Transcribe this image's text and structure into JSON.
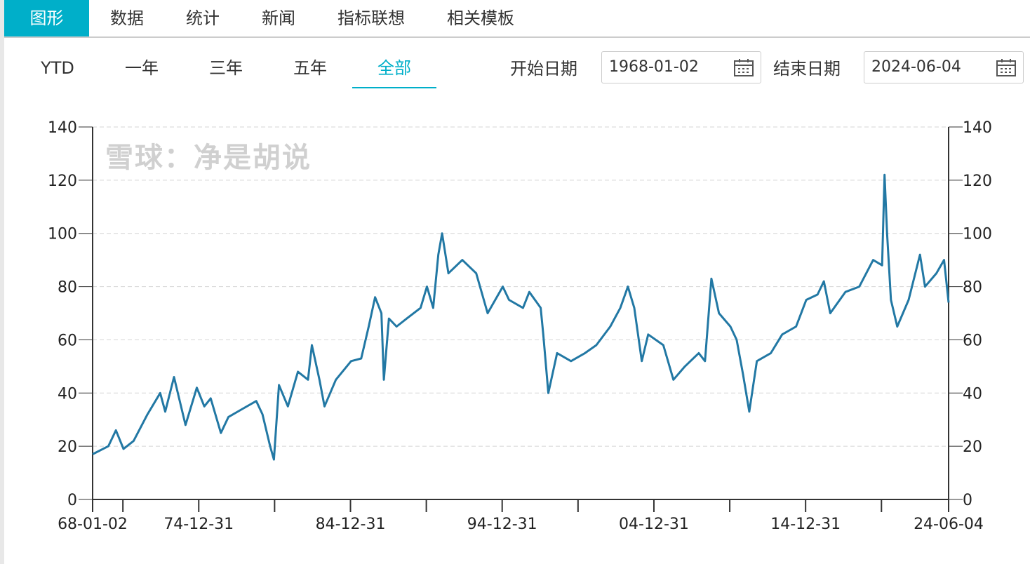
{
  "tabs": [
    {
      "label": "图形",
      "active": true
    },
    {
      "label": "数据"
    },
    {
      "label": "统计"
    },
    {
      "label": "新闻"
    },
    {
      "label": "指标联想"
    },
    {
      "label": "相关模板"
    }
  ],
  "ranges": [
    {
      "label": "YTD"
    },
    {
      "label": "一年"
    },
    {
      "label": "三年"
    },
    {
      "label": "五年"
    },
    {
      "label": "全部",
      "active": true
    }
  ],
  "start_label": "开始日期",
  "start_date": "1968-01-02",
  "end_label": "结束日期",
  "end_date": "2024-06-04",
  "accent": "#00afc9",
  "watermark": "雪球：净是胡说",
  "chart_data": {
    "type": "line",
    "color": "#2278a4",
    "grid": true,
    "ylim": [
      0,
      140
    ],
    "yticks": [
      0,
      20,
      40,
      60,
      80,
      100,
      120,
      140
    ],
    "xlim": [
      "1968-01-02",
      "2024-06-04"
    ],
    "xtick_labels": [
      "68-01-02",
      "74-12-31",
      "84-12-31",
      "94-12-31",
      "04-12-31",
      "14-12-31",
      "24-06-04"
    ],
    "series": [
      {
        "points": [
          [
            "1968-01-02",
            17
          ],
          [
            "1969-01",
            20
          ],
          [
            "1969-07",
            26
          ],
          [
            "1970-01",
            19
          ],
          [
            "1970-09",
            22
          ],
          [
            "1971-08",
            32
          ],
          [
            "1972-06",
            40
          ],
          [
            "1972-10",
            33
          ],
          [
            "1973-05",
            46
          ],
          [
            "1974-02",
            28
          ],
          [
            "1974-11",
            42
          ],
          [
            "1975-05",
            35
          ],
          [
            "1975-10",
            38
          ],
          [
            "1976-06",
            25
          ],
          [
            "1976-12",
            31
          ],
          [
            "1977-11",
            34
          ],
          [
            "1978-10",
            37
          ],
          [
            "1979-03",
            32
          ],
          [
            "1979-09",
            20
          ],
          [
            "1979-12",
            15
          ],
          [
            "1980-04",
            43
          ],
          [
            "1980-11",
            35
          ],
          [
            "1981-07",
            48
          ],
          [
            "1982-03",
            45
          ],
          [
            "1982-06",
            58
          ],
          [
            "1982-12",
            45
          ],
          [
            "1983-04",
            35
          ],
          [
            "1984-01",
            45
          ],
          [
            "1985-01",
            52
          ],
          [
            "1985-09",
            53
          ],
          [
            "1986-03",
            65
          ],
          [
            "1986-08",
            76
          ],
          [
            "1987-01",
            70
          ],
          [
            "1987-03",
            45
          ],
          [
            "1987-07",
            68
          ],
          [
            "1988-01",
            65
          ],
          [
            "1988-09",
            68
          ],
          [
            "1989-08",
            72
          ],
          [
            "1990-01",
            80
          ],
          [
            "1990-06",
            72
          ],
          [
            "1990-10",
            92
          ],
          [
            "1991-01",
            100
          ],
          [
            "1991-06",
            85
          ],
          [
            "1992-05",
            90
          ],
          [
            "1993-04",
            85
          ],
          [
            "1994-01",
            70
          ],
          [
            "1995-01",
            80
          ],
          [
            "1995-06",
            75
          ],
          [
            "1996-05",
            72
          ],
          [
            "1996-10",
            78
          ],
          [
            "1997-07",
            72
          ],
          [
            "1997-09",
            62
          ],
          [
            "1998-01",
            40
          ],
          [
            "1998-08",
            55
          ],
          [
            "1999-07",
            52
          ],
          [
            "2000-06",
            55
          ],
          [
            "2001-03",
            58
          ],
          [
            "2002-02",
            65
          ],
          [
            "2002-10",
            72
          ],
          [
            "2003-04",
            80
          ],
          [
            "2003-09",
            72
          ],
          [
            "2004-03",
            52
          ],
          [
            "2004-08",
            62
          ],
          [
            "2005-08",
            58
          ],
          [
            "2006-04",
            45
          ],
          [
            "2007-01",
            50
          ],
          [
            "2007-12",
            55
          ],
          [
            "2008-05",
            52
          ],
          [
            "2008-10",
            83
          ],
          [
            "2009-04",
            70
          ],
          [
            "2010-01",
            65
          ],
          [
            "2010-06",
            60
          ],
          [
            "2010-11",
            47
          ],
          [
            "2011-04",
            33
          ],
          [
            "2011-10",
            52
          ],
          [
            "2012-09",
            55
          ],
          [
            "2013-06",
            62
          ],
          [
            "2014-05",
            65
          ],
          [
            "2015-01",
            75
          ],
          [
            "2015-10",
            77
          ],
          [
            "2016-03",
            82
          ],
          [
            "2016-08",
            70
          ],
          [
            "2017-08",
            78
          ],
          [
            "2018-07",
            80
          ],
          [
            "2019-06",
            90
          ],
          [
            "2020-01",
            88
          ],
          [
            "2020-03",
            122
          ],
          [
            "2020-05",
            100
          ],
          [
            "2020-08",
            75
          ],
          [
            "2021-01",
            65
          ],
          [
            "2021-10",
            75
          ],
          [
            "2022-07",
            92
          ],
          [
            "2022-11",
            80
          ],
          [
            "2023-08",
            85
          ],
          [
            "2024-02",
            90
          ],
          [
            "2024-06-04",
            74
          ]
        ]
      }
    ]
  }
}
